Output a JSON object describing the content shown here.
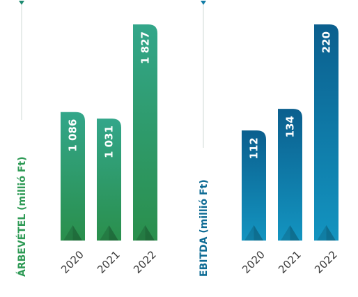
{
  "chart_data": [
    {
      "type": "bar",
      "title": "",
      "xlabel": "",
      "ylabel": "ÁRBEVÉTEL (millió Ft)",
      "categories": [
        "2020",
        "2021",
        "2022"
      ],
      "values": [
        1086,
        1031,
        1827
      ],
      "value_labels": [
        "1 086",
        "1 031",
        "1 827"
      ],
      "ylim": [
        0,
        1827
      ],
      "grid": false,
      "colors": {
        "top": "#33a68a",
        "bottom": "#2a8f4c",
        "title": "#2e9a55",
        "marker": "#1f8c72"
      }
    },
    {
      "type": "bar",
      "title": "",
      "xlabel": "",
      "ylabel": "EBITDA (millió Ft)",
      "categories": [
        "2020",
        "2021",
        "2022"
      ],
      "values": [
        112,
        134,
        220
      ],
      "value_labels": [
        "112",
        "134",
        "220"
      ],
      "ylim": [
        0,
        220
      ],
      "grid": false,
      "colors": {
        "top": "#0b5f8e",
        "bottom": "#1394c0",
        "title": "#0e6b94",
        "marker": "#137da6"
      }
    }
  ]
}
